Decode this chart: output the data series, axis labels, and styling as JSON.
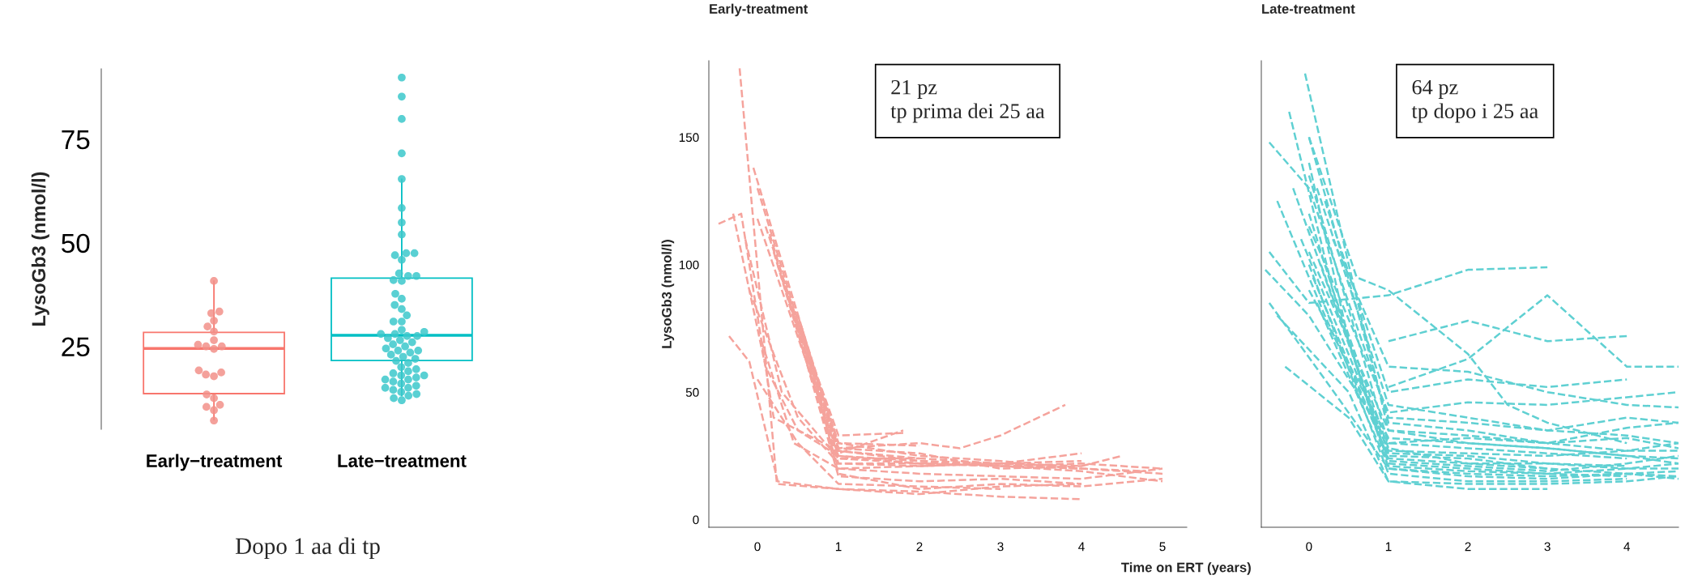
{
  "chart_data": [
    {
      "type": "box",
      "categories": [
        "Early−treatment",
        "Late−treatment"
      ],
      "ylabel": "LysoGb3 (nmol/l)",
      "ylim": [
        5,
        92
      ],
      "yticks": [
        25,
        50,
        75
      ],
      "colors": [
        "#f8766d",
        "#00bfc4"
      ],
      "boxes": [
        {
          "low": 7.3,
          "q1": 13.6,
          "median": 24.5,
          "q3": 28.4,
          "high": 40.8
        },
        {
          "low": 13.1,
          "q1": 21.6,
          "median": 27.7,
          "q3": 41.5,
          "high": 65.4
        }
      ],
      "series": [
        {
          "type": "scatter",
          "color": "#f29089",
          "x": [
            "Early−treatment",
            "Early−treatment",
            "Early−treatment",
            "Early−treatment",
            "Early−treatment",
            "Early−treatment",
            "Early−treatment",
            "Early−treatment",
            "Early−treatment",
            "Early−treatment",
            "Early−treatment",
            "Early−treatment",
            "Early−treatment",
            "Early−treatment",
            "Early−treatment",
            "Early−treatment",
            "Early−treatment",
            "Early−treatment",
            "Early−treatment",
            "Early−treatment",
            "Early−treatment"
          ],
          "values": [
            40.8,
            33.4,
            33,
            31.2,
            29.8,
            28.6,
            26.5,
            25.4,
            25,
            24.4,
            25,
            18.2,
            18.7,
            17.8,
            19.2,
            13.4,
            12.5,
            10.4,
            10.9,
            9.6,
            7.1
          ]
        },
        {
          "type": "scatter",
          "color": "#3cc8cb",
          "x": [
            "Late−treatment",
            "Late−treatment",
            "Late−treatment",
            "Late−treatment",
            "Late−treatment",
            "Late−treatment",
            "Late−treatment",
            "Late−treatment",
            "Late−treatment",
            "Late−treatment",
            "Late−treatment",
            "Late−treatment",
            "Late−treatment",
            "Late−treatment",
            "Late−treatment",
            "Late−treatment",
            "Late−treatment",
            "Late−treatment",
            "Late−treatment",
            "Late−treatment",
            "Late−treatment",
            "Late−treatment",
            "Late−treatment",
            "Late−treatment",
            "Late−treatment",
            "Late−treatment",
            "Late−treatment",
            "Late−treatment",
            "Late−treatment",
            "Late−treatment",
            "Late−treatment",
            "Late−treatment",
            "Late−treatment",
            "Late−treatment",
            "Late−treatment",
            "Late−treatment",
            "Late−treatment",
            "Late−treatment",
            "Late−treatment",
            "Late−treatment",
            "Late−treatment",
            "Late−treatment",
            "Late−treatment",
            "Late−treatment",
            "Late−treatment",
            "Late−treatment",
            "Late−treatment",
            "Late−treatment",
            "Late−treatment",
            "Late−treatment",
            "Late−treatment",
            "Late−treatment",
            "Late−treatment",
            "Late−treatment",
            "Late−treatment",
            "Late−treatment",
            "Late−treatment",
            "Late−treatment",
            "Late−treatment",
            "Late−treatment",
            "Late−treatment",
            "Late−treatment",
            "Late−treatment",
            "Late−treatment"
          ],
          "values": [
            89.9,
            85.3,
            79.9,
            71.6,
            65.4,
            58.4,
            54.9,
            52,
            47.5,
            47.5,
            47,
            45.9,
            42.6,
            42,
            42,
            40.8,
            41,
            37.7,
            36.5,
            35,
            34,
            32.5,
            31,
            31,
            29,
            28.5,
            28,
            28,
            27.5,
            27.5,
            27,
            26.5,
            26,
            25.5,
            25,
            24.5,
            24,
            24,
            23.5,
            23,
            22.5,
            22,
            21.5,
            21,
            20,
            19.5,
            19,
            18.5,
            18,
            18,
            17.5,
            17,
            17,
            16.5,
            16,
            15.5,
            15,
            15,
            14.5,
            14,
            13.5,
            13.1,
            12.5,
            12
          ]
        }
      ],
      "annotations": [
        "Dopo 1 aa di tp"
      ]
    },
    {
      "type": "line",
      "title": "Early-treatment",
      "ylabel": "LysoGb3 (nmol/l)",
      "xlim": [
        -0.6,
        5.3
      ],
      "ylim": [
        -3,
        180
      ],
      "xticks": [
        0,
        1,
        2,
        3,
        4,
        5
      ],
      "yticks": [
        0,
        50,
        100,
        150
      ],
      "line_style": "dashed",
      "annotations": [
        "21 pz\ntp prima dei 25 aa"
      ],
      "series": [
        {
          "color": "#f5a39c",
          "x": [
            -0.22,
            0.24,
            1,
            2,
            3,
            4
          ],
          "values": [
            177,
            14,
            12,
            10,
            13,
            14
          ]
        },
        {
          "color": "#f5a39c",
          "x": [
            -0.48,
            -0.2,
            0.2,
            1,
            2,
            3,
            4
          ],
          "values": [
            116,
            120,
            40,
            27,
            23,
            21,
            20
          ]
        },
        {
          "color": "#f5a39c",
          "x": [
            -0.3,
            0.1,
            0.5,
            1,
            2,
            3,
            4,
            5
          ],
          "values": [
            120,
            60,
            35,
            25,
            22,
            21,
            22,
            20
          ]
        },
        {
          "color": "#f5a39c",
          "x": [
            -0.35,
            -0.1,
            0.25,
            1,
            2,
            3,
            4
          ],
          "values": [
            72,
            62,
            15,
            12,
            11,
            9,
            8
          ]
        },
        {
          "color": "#f5a39c",
          "x": [
            -0.05,
            1,
            2,
            2.5,
            3,
            3.8
          ],
          "values": [
            138,
            28,
            30,
            28,
            33,
            45
          ]
        },
        {
          "color": "#f5a39c",
          "x": [
            0,
            1,
            1.8
          ],
          "values": [
            130,
            26,
            35
          ]
        },
        {
          "color": "#f5a39c",
          "x": [
            0,
            1,
            2,
            3,
            4,
            4.5
          ],
          "values": [
            118,
            25,
            23,
            22,
            21,
            25
          ]
        },
        {
          "color": "#f5a39c",
          "x": [
            0.1,
            1,
            2,
            3,
            4,
            5
          ],
          "values": [
            115,
            30,
            25,
            23,
            20,
            18
          ]
        },
        {
          "color": "#f5a39c",
          "x": [
            0.15,
            1,
            2,
            3,
            4,
            5
          ],
          "values": [
            112,
            24,
            22,
            21,
            19,
            15
          ]
        },
        {
          "color": "#f5a39c",
          "x": [
            0.2,
            1,
            2,
            3,
            4,
            5
          ],
          "values": [
            105,
            20,
            18,
            17,
            16,
            20
          ]
        },
        {
          "color": "#f5a39c",
          "x": [
            0.25,
            1,
            2,
            3,
            4
          ],
          "values": [
            100,
            22,
            21,
            22,
            26
          ]
        },
        {
          "color": "#f5a39c",
          "x": [
            0.3,
            1,
            1.8
          ],
          "values": [
            95,
            33,
            34
          ]
        },
        {
          "color": "#f5a39c",
          "x": [
            0.35,
            1,
            2,
            3,
            4
          ],
          "values": [
            90,
            28,
            26,
            20,
            21
          ]
        },
        {
          "color": "#f5a39c",
          "x": [
            0.4,
            1,
            2,
            3,
            4
          ],
          "values": [
            85,
            17,
            15,
            16,
            14
          ]
        },
        {
          "color": "#f5a39c",
          "x": [
            0.5,
            1,
            2
          ],
          "values": [
            80,
            30,
            29
          ]
        },
        {
          "color": "#f5a39c",
          "x": [
            0.55,
            1,
            2,
            3,
            4,
            5
          ],
          "values": [
            75,
            18,
            12,
            14,
            13,
            16
          ]
        },
        {
          "color": "#f5a39c",
          "x": [
            -0.1,
            0.5,
            1,
            2,
            3
          ],
          "values": [
            90,
            40,
            22,
            22,
            22
          ]
        },
        {
          "color": "#f5a39c",
          "x": [
            0,
            0.5,
            1,
            2,
            3
          ],
          "values": [
            55,
            30,
            14,
            13,
            12
          ]
        },
        {
          "color": "#f5a39c",
          "x": [
            -0.15,
            0.3,
            1,
            2
          ],
          "values": [
            110,
            50,
            24,
            24
          ]
        },
        {
          "color": "#f5a39c",
          "x": [
            0.05,
            0.45,
            1,
            2,
            3,
            4
          ],
          "values": [
            70,
            30,
            20,
            21,
            22,
            23
          ]
        },
        {
          "color": "#f5a39c",
          "x": [
            0.6,
            1,
            2,
            3,
            4,
            4.8
          ],
          "values": [
            65,
            27,
            24,
            22,
            20,
            19
          ]
        }
      ]
    },
    {
      "type": "line",
      "title": "Late-treatment",
      "xlabel": "Time on ERT (years)",
      "xlim": [
        -0.6,
        4.65
      ],
      "ylim": [
        -3,
        180
      ],
      "xticks": [
        0,
        1,
        2,
        3,
        4
      ],
      "tick_labels": "x",
      "line_style": "dashed",
      "annotations": [
        "64 pz\ntp dopo i 25 aa"
      ],
      "series": [
        {
          "color": "#5fd0d2",
          "x": [
            -0.5,
            0,
            1,
            2,
            3
          ],
          "values": [
            105,
            85,
            88,
            98,
            99
          ]
        },
        {
          "color": "#5fd0d2",
          "x": [
            0,
            0.6,
            1,
            2,
            2.5,
            3,
            4
          ],
          "values": [
            150,
            95,
            90,
            65,
            45,
            38,
            30
          ]
        },
        {
          "color": "#5fd0d2",
          "x": [
            1,
            2,
            3,
            4,
            4.65
          ],
          "values": [
            52,
            63,
            88,
            60,
            60
          ]
        },
        {
          "color": "#5fd0d2",
          "x": [
            1,
            2,
            3,
            4
          ],
          "values": [
            70,
            78,
            70,
            72
          ]
        },
        {
          "color": "#5fd0d2",
          "x": [
            -0.05,
            0.5,
            1,
            2,
            3,
            4,
            4.65
          ],
          "values": [
            175,
            100,
            35,
            30,
            28,
            25,
            22
          ]
        },
        {
          "color": "#5fd0d2",
          "x": [
            -0.25,
            0.3,
            1,
            2,
            3,
            4,
            4.65
          ],
          "values": [
            160,
            90,
            28,
            22,
            20,
            18,
            17
          ]
        },
        {
          "color": "#5fd0d2",
          "x": [
            -0.5,
            0,
            1,
            2,
            3,
            4,
            4.65
          ],
          "values": [
            148,
            130,
            40,
            38,
            35,
            33,
            30
          ]
        },
        {
          "color": "#5fd0d2",
          "x": [
            0,
            0.5,
            1,
            2,
            3,
            4
          ],
          "values": [
            140,
            70,
            22,
            20,
            18,
            17
          ]
        },
        {
          "color": "#5fd0d2",
          "x": [
            0,
            1,
            2,
            3,
            4,
            4.65
          ],
          "values": [
            135,
            30,
            32,
            30,
            36,
            38
          ]
        },
        {
          "color": "#5fd0d2",
          "x": [
            -0.4,
            0.2,
            1,
            2,
            3
          ],
          "values": [
            125,
            80,
            25,
            24,
            20
          ]
        },
        {
          "color": "#5fd0d2",
          "x": [
            0.1,
            1,
            2,
            3,
            4,
            4.65
          ],
          "values": [
            130,
            45,
            40,
            35,
            40,
            38
          ]
        },
        {
          "color": "#5fd0d2",
          "x": [
            0,
            1,
            2,
            3,
            4,
            4.65
          ],
          "values": [
            120,
            20,
            17,
            16,
            18,
            19
          ]
        },
        {
          "color": "#5fd0d2",
          "x": [
            0.2,
            1,
            2,
            3,
            4
          ],
          "values": [
            125,
            50,
            55,
            52,
            55
          ]
        },
        {
          "color": "#5fd0d2",
          "x": [
            -0.1,
            1,
            2,
            3,
            4,
            4.65
          ],
          "values": [
            110,
            27,
            26,
            25,
            27,
            30
          ]
        },
        {
          "color": "#5fd0d2",
          "x": [
            0,
            1,
            2,
            3,
            4,
            4.65
          ],
          "values": [
            105,
            35,
            33,
            30,
            32,
            28
          ]
        },
        {
          "color": "#5fd0d2",
          "x": [
            -0.55,
            0,
            1,
            2,
            3,
            4
          ],
          "values": [
            98,
            80,
            30,
            28,
            26,
            24
          ]
        },
        {
          "color": "#5fd0d2",
          "x": [
            -0.5,
            0.2,
            1,
            2,
            3,
            4,
            4.65
          ],
          "values": [
            85,
            55,
            20,
            18,
            17,
            18,
            16
          ]
        },
        {
          "color": "#5fd0d2",
          "x": [
            -0.4,
            0.5,
            1,
            2,
            3,
            4,
            4.65
          ],
          "values": [
            80,
            50,
            15,
            14,
            14,
            15,
            17
          ]
        },
        {
          "color": "#5fd0d2",
          "x": [
            0,
            1,
            2,
            3,
            4
          ],
          "values": [
            100,
            18,
            15,
            15,
            16
          ]
        },
        {
          "color": "#5fd0d2",
          "x": [
            0.05,
            1,
            2,
            3,
            4,
            4.65
          ],
          "values": [
            95,
            24,
            22,
            22,
            20,
            22
          ]
        },
        {
          "color": "#5fd0d2",
          "x": [
            0.3,
            1,
            2,
            3,
            4,
            4.65
          ],
          "values": [
            110,
            60,
            58,
            50,
            45,
            44
          ]
        },
        {
          "color": "#5fd0d2",
          "x": [
            -0.3,
            0.5,
            1,
            2,
            3
          ],
          "values": [
            60,
            40,
            15,
            12,
            12
          ]
        },
        {
          "color": "#5fd0d2",
          "x": [
            0,
            1,
            2,
            3,
            4,
            4.65
          ],
          "values": [
            90,
            32,
            30,
            28,
            25,
            24
          ]
        },
        {
          "color": "#5fd0d2",
          "x": [
            0.15,
            1,
            2,
            3,
            4
          ],
          "values": [
            100,
            26,
            25,
            22,
            21
          ]
        },
        {
          "color": "#5fd0d2",
          "x": [
            0,
            1,
            2,
            3,
            4,
            4.65
          ],
          "values": [
            150,
            38,
            35,
            30,
            27,
            27
          ]
        },
        {
          "color": "#5fd0d2",
          "x": [
            0.1,
            1,
            2,
            3,
            4,
            4.65
          ],
          "values": [
            85,
            21,
            19,
            18,
            20,
            20
          ]
        },
        {
          "color": "#5fd0d2",
          "x": [
            0,
            1,
            2,
            3,
            4,
            4.65
          ],
          "values": [
            115,
            42,
            46,
            45,
            48,
            50
          ]
        },
        {
          "color": "#5fd0d2",
          "x": [
            -0.2,
            0.6,
            1,
            2,
            3,
            4,
            4.65
          ],
          "values": [
            130,
            60,
            23,
            21,
            19,
            22,
            25
          ]
        }
      ]
    }
  ]
}
